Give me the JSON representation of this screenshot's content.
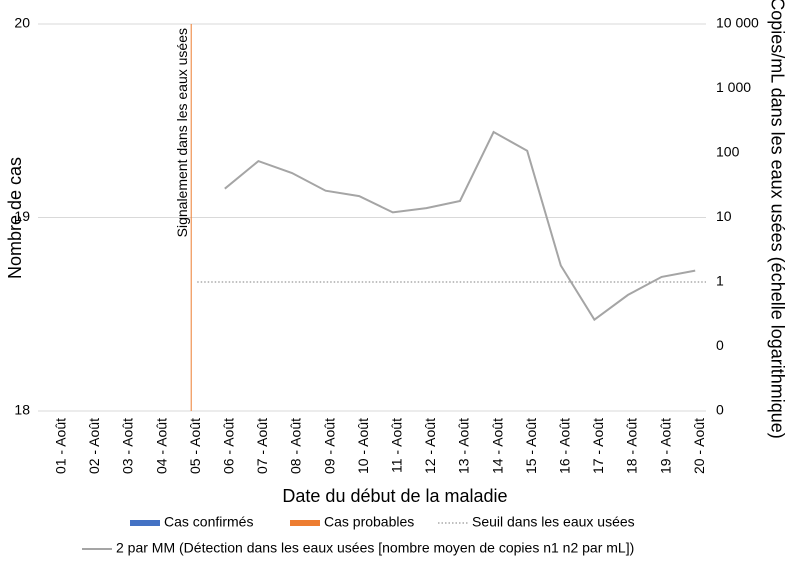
{
  "chart_data": {
    "type": "line",
    "categories": [
      "01 - Août",
      "02 - Août",
      "03 - Août",
      "04 - Août",
      "05 - Août",
      "06 - Août",
      "07 - Août",
      "08 - Août",
      "09 - Août",
      "10 - Août",
      "11 - Août",
      "12 - Août",
      "13 - Août",
      "14 - Août",
      "15 - Août",
      "16 - Août",
      "17 - Août",
      "18 - Août",
      "19 - Août",
      "20 - Août"
    ],
    "x_label": "Date du début de la maladie",
    "y_label": "Nombre de cas",
    "y2_label": "Copies/mL dans les eaux usées (échelle logarithmique)",
    "ylim": [
      18,
      20
    ],
    "yticks": [
      18,
      19,
      20
    ],
    "y2lim": [
      0.01,
      10000
    ],
    "y2_log": true,
    "y2ticks": [
      {
        "value": 0.01,
        "label": "0"
      },
      {
        "value": 0.1,
        "label": "0"
      },
      1,
      10,
      100,
      {
        "value": 1000,
        "label": "1 000"
      },
      {
        "value": 10000,
        "label": "10 000"
      }
    ],
    "grid": true,
    "annotation": {
      "text": "Signalement dans les eaux usées",
      "x": "05 - Août",
      "color": "#ed7d31"
    },
    "series": [
      {
        "name": "Cas confirmés",
        "color": "#4472c4",
        "values": [
          null,
          null,
          null,
          null,
          null,
          null,
          null,
          null,
          null,
          null,
          null,
          null,
          null,
          null,
          null,
          null,
          null,
          null,
          null,
          null
        ]
      },
      {
        "name": "Cas probables",
        "color": "#ed7d31",
        "values": [
          null,
          null,
          null,
          null,
          null,
          null,
          null,
          null,
          null,
          null,
          null,
          null,
          null,
          null,
          null,
          null,
          null,
          null,
          null,
          null
        ]
      },
      {
        "name": "Seuil dans les eaux usées",
        "color": "#7f7f7f",
        "style": "dotted",
        "axis": "y2",
        "value": 1
      },
      {
        "name": "2 par MM (Détection dans les eaux usées [nombre moyen de copies n1 n2 par mL])",
        "color": "#a5a5a5",
        "axis": "y2",
        "values": [
          null,
          null,
          null,
          null,
          null,
          28,
          75,
          49,
          26,
          21.5,
          12,
          14,
          18,
          212,
          108,
          1.8,
          0.26,
          0.63,
          1.2,
          1.5
        ]
      }
    ]
  }
}
